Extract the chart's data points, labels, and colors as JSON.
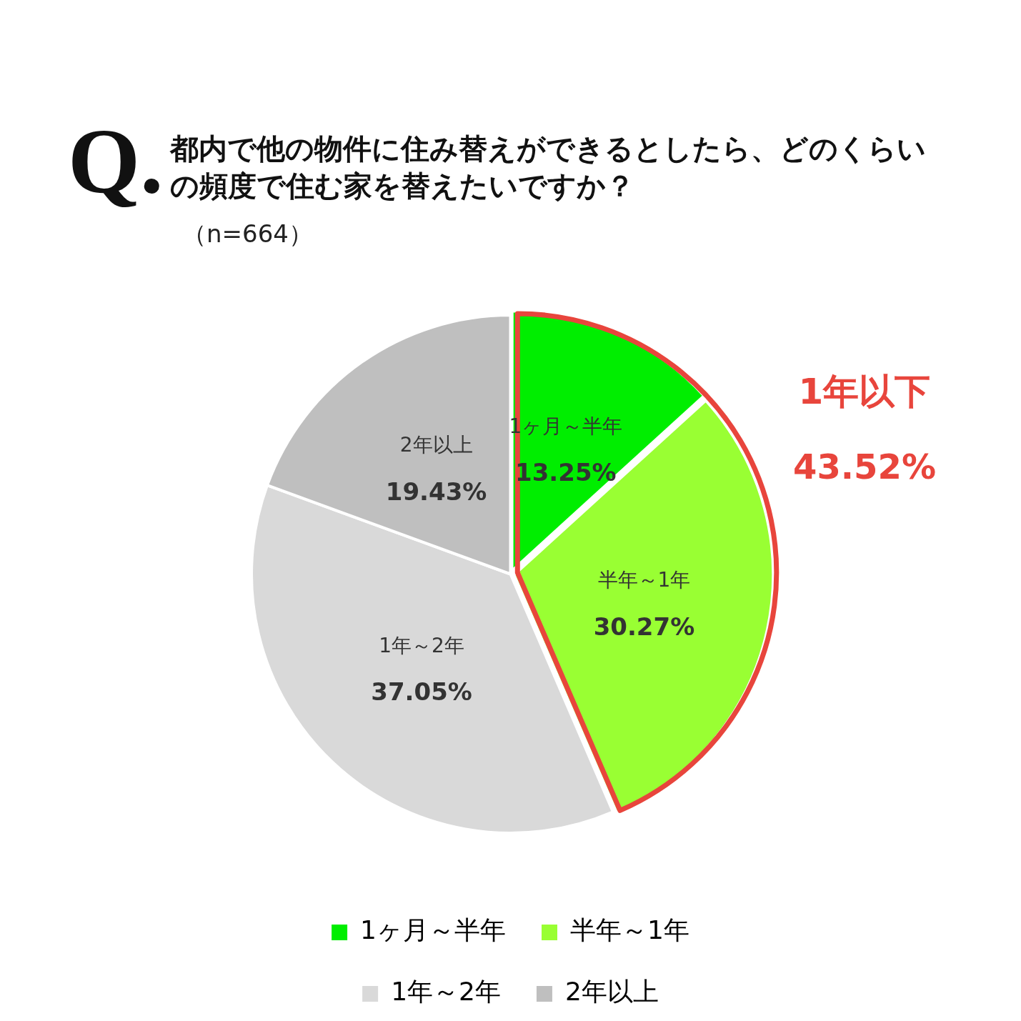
{
  "chart_data": {
    "type": "pie",
    "title": "都内で他の物件に住み替えができるとしたら、どのくらいの頻度で住む家を替えたいですか？",
    "subtitle": "（n=664）",
    "categories": [
      "1ヶ月～半年",
      "半年～1年",
      "1年～2年",
      "2年以上"
    ],
    "values": [
      13.25,
      30.27,
      37.05,
      19.43
    ],
    "value_labels": [
      "13.25%",
      "30.27%",
      "37.05%",
      "19.43%"
    ],
    "colors": [
      "#00ee00",
      "#99ff33",
      "#d9d9d9",
      "#bfbfbf"
    ],
    "legend": "bottom",
    "annotations": [
      "Q.",
      "1年以下",
      "43.52%"
    ]
  }
}
